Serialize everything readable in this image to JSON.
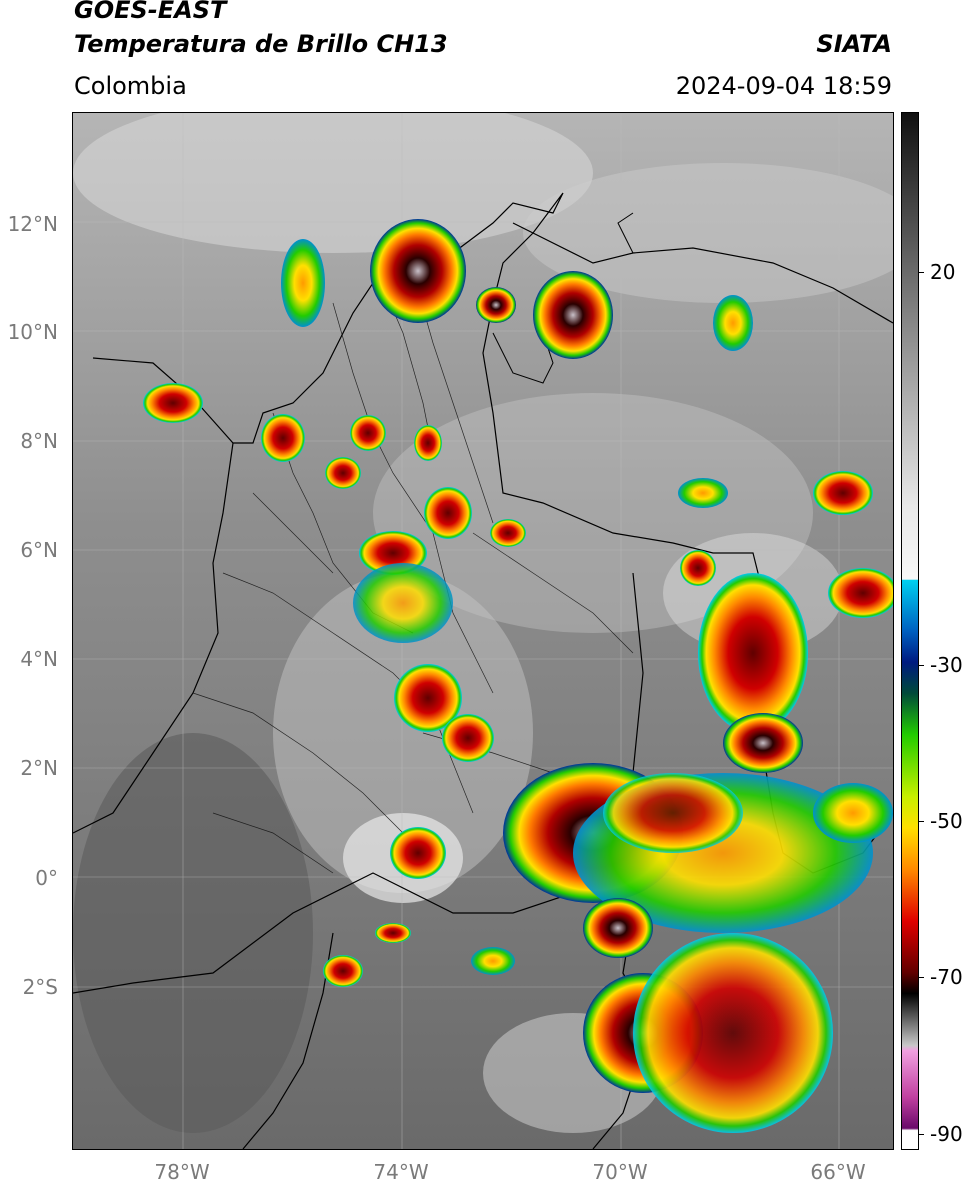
{
  "header": {
    "satellite": "GOES-EAST",
    "product": "Temperatura de Brillo CH13",
    "organization": "SIATA",
    "region": "Colombia",
    "datetime": "2024-09-04 18:59"
  },
  "map": {
    "lat_labels": [
      "12°N",
      "10°N",
      "8°N",
      "6°N",
      "4°N",
      "2°N",
      "0°",
      "2°S"
    ],
    "lon_labels": [
      "78°W",
      "74°W",
      "70°W",
      "66°W"
    ]
  },
  "colorbar": {
    "ticks": [
      "20",
      "-30",
      "-50",
      "-70",
      "-90"
    ],
    "colors": {
      "cold_top": "#ffffff",
      "purple": "#8a1a8a",
      "magenta": "#e060c0",
      "black": "#000000",
      "red": "#d00000",
      "orange": "#ff8a00",
      "yellow": "#ffe000",
      "green": "#22cc00",
      "blue": "#0030a0",
      "cyan": "#00c8f0",
      "gray_light": "#f0f0f0",
      "gray_dark": "#101010"
    }
  }
}
